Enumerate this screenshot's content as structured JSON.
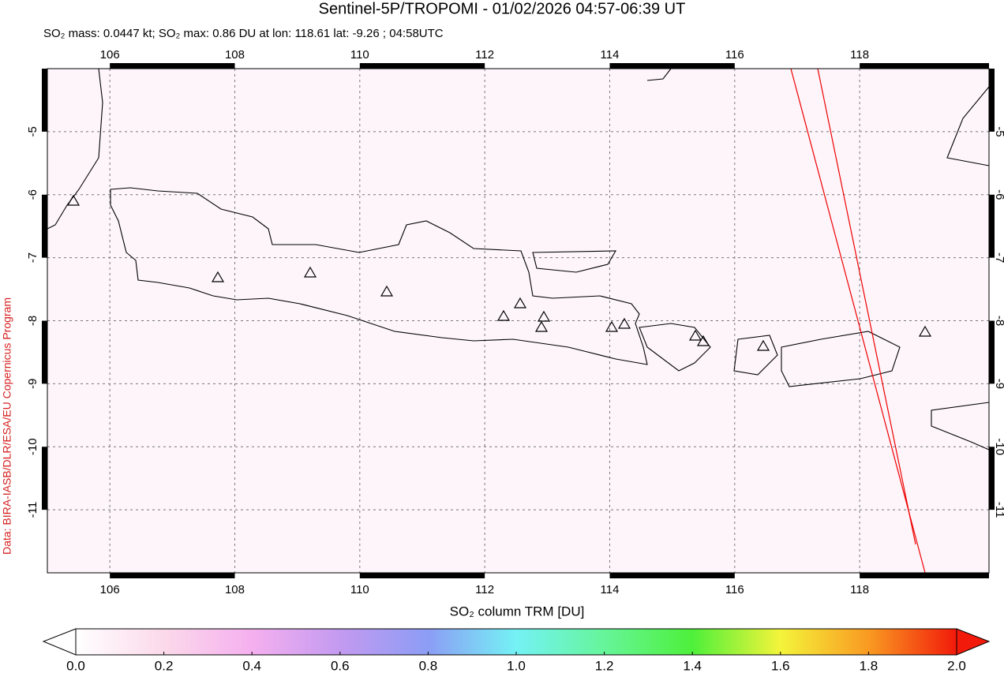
{
  "header": {
    "title": "Sentinel-5P/TROPOMI - 01/02/2026 04:57-06:39 UT",
    "subtitle": "SO₂ mass: 0.0447 kt; SO₂ max: 0.86 DU at lon: 118.61 lat: -9.26 ; 04:58UTC"
  },
  "map": {
    "xlim": [
      105,
      120.07
    ],
    "ylim": [
      -12,
      -4
    ],
    "xticks": [
      106,
      108,
      110,
      112,
      114,
      116,
      118
    ],
    "yticks": [
      -5,
      -6,
      -7,
      -8,
      -9,
      -10,
      -11
    ],
    "credit": "Data: BIRA-IASB/DLR/ESA/EU Copernicus Program"
  },
  "colorbar": {
    "label": "SO₂ column TRM [DU]",
    "range": [
      0,
      2
    ],
    "ticks": [
      {
        "value": 0,
        "label": "0.0"
      },
      {
        "value": 0.2,
        "label": "0.2"
      },
      {
        "value": 0.4,
        "label": "0.4"
      },
      {
        "value": 0.6,
        "label": "0.6"
      },
      {
        "value": 0.8,
        "label": "0.8"
      },
      {
        "value": 1,
        "label": "1.0"
      },
      {
        "value": 1.2,
        "label": "1.2"
      },
      {
        "value": 1.4,
        "label": "1.4"
      },
      {
        "value": 1.6,
        "label": "1.6"
      },
      {
        "value": 1.8,
        "label": "1.8"
      },
      {
        "value": 2,
        "label": "2.0"
      }
    ]
  }
}
